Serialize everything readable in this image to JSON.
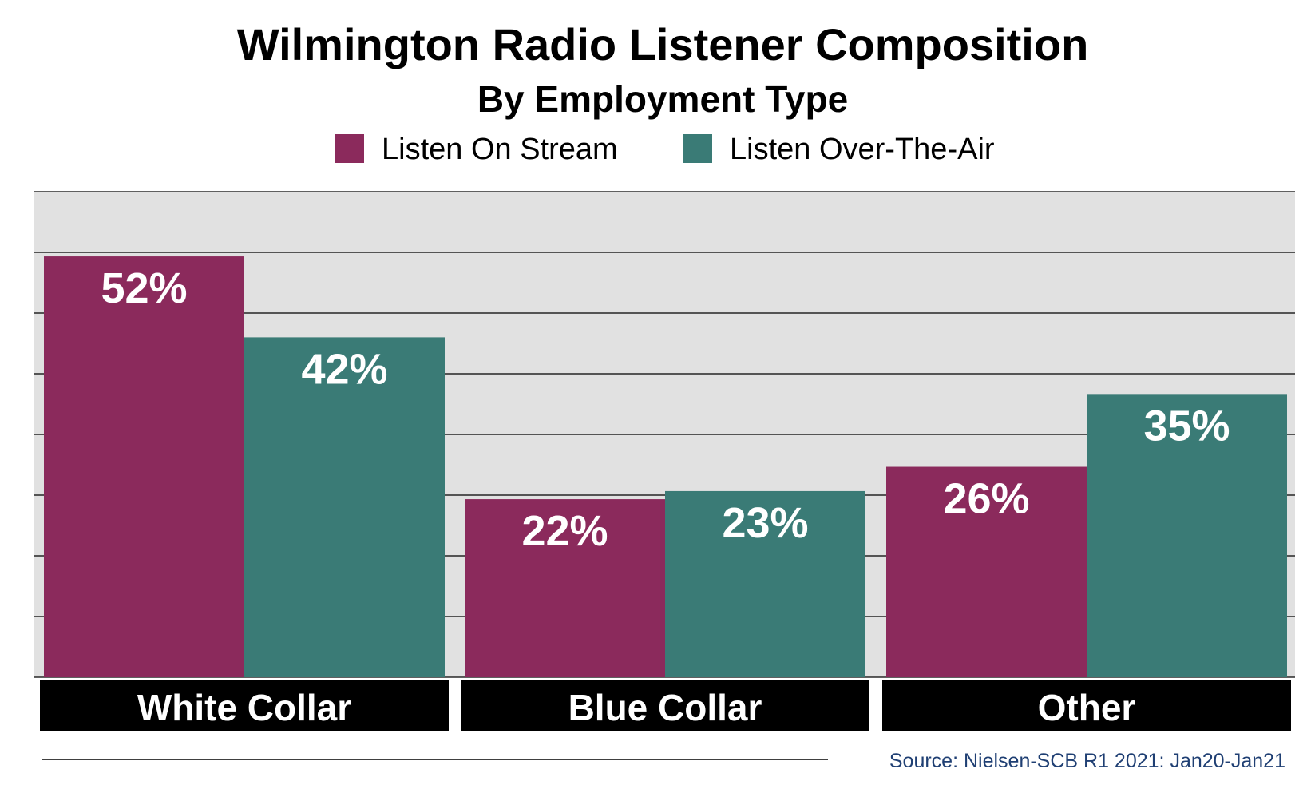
{
  "chart_data": {
    "type": "bar",
    "title": "Wilmington Radio Listener Composition",
    "subtitle": "By Employment Type",
    "categories": [
      "White Collar",
      "Blue Collar",
      "Other"
    ],
    "series": [
      {
        "name": "Listen On Stream",
        "color": "#8b2a5c",
        "values": [
          52,
          22,
          26
        ],
        "labels": [
          "52%",
          "22%",
          "26%"
        ]
      },
      {
        "name": "Listen Over-The-Air",
        "color": "#3a7b76",
        "values": [
          42,
          23,
          35
        ],
        "labels": [
          "42%",
          "23%",
          "35%"
        ]
      }
    ],
    "ylim": [
      0,
      60
    ],
    "grid": true,
    "legend_position": "top-center",
    "source": "Source: Nielsen-SCB R1 2021: Jan20-Jan21"
  },
  "colors": {
    "plot_background": "#e1e1e1",
    "gridline": "#000000",
    "category_band": "#000000",
    "source_text": "#1f3f73"
  }
}
